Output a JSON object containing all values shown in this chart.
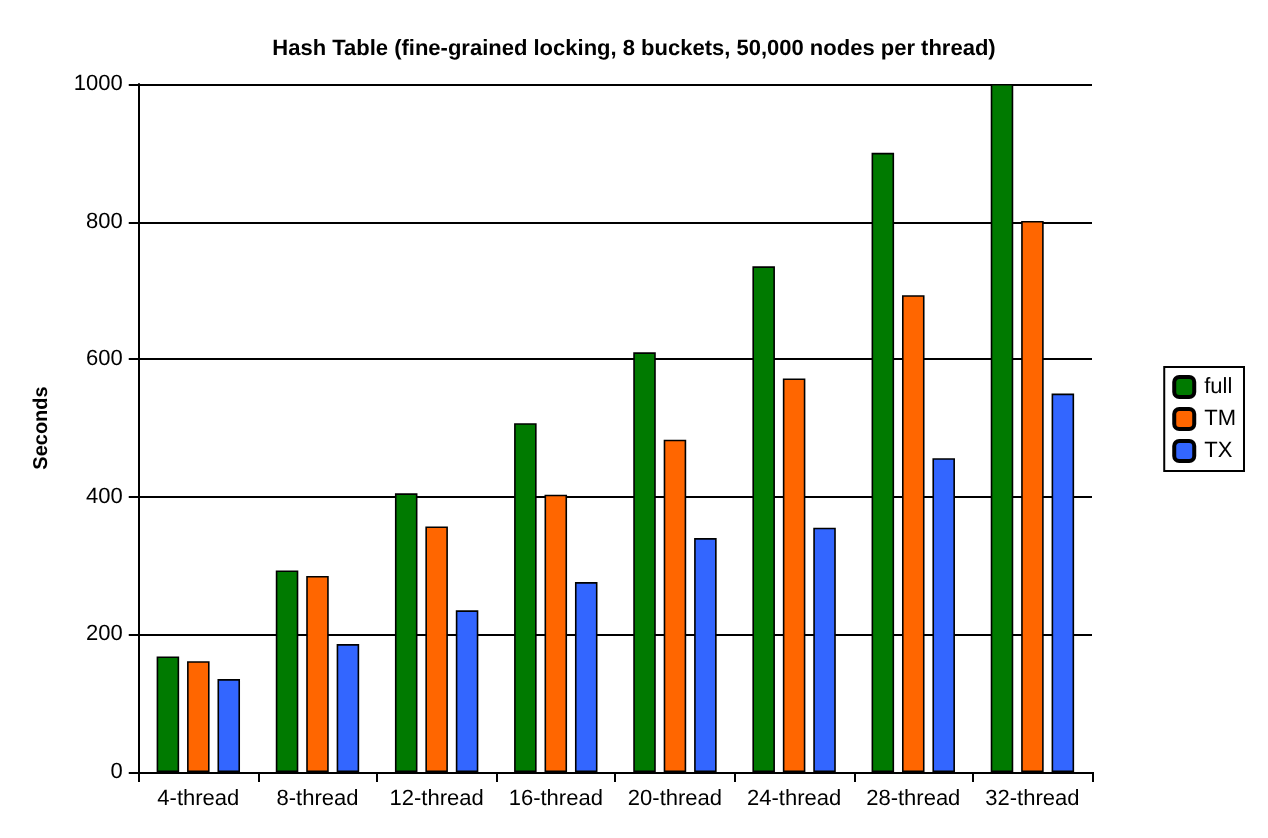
{
  "chart_data": {
    "type": "bar",
    "title": "Hash Table (fine-grained locking, 8 buckets, 50,000 nodes per thread)",
    "ylabel": "Seconds",
    "categories": [
      "4-thread",
      "8-thread",
      "12-thread",
      "16-thread",
      "20-thread",
      "24-thread",
      "28-thread",
      "32-thread"
    ],
    "series": [
      {
        "name": "full",
        "color": "#007a00",
        "values": [
          168,
          293,
          405,
          507,
          610,
          735,
          900,
          1000
        ]
      },
      {
        "name": "TM",
        "color": "#ff6600",
        "values": [
          161,
          285,
          357,
          403,
          483,
          572,
          693,
          801
        ]
      },
      {
        "name": "TX",
        "color": "#3366ff",
        "values": [
          135,
          186,
          235,
          276,
          340,
          355,
          456,
          550
        ]
      }
    ],
    "ylim": [
      0,
      1000
    ],
    "yticks": [
      0,
      200,
      400,
      600,
      800,
      1000
    ],
    "grid": "y",
    "legend": "right"
  }
}
